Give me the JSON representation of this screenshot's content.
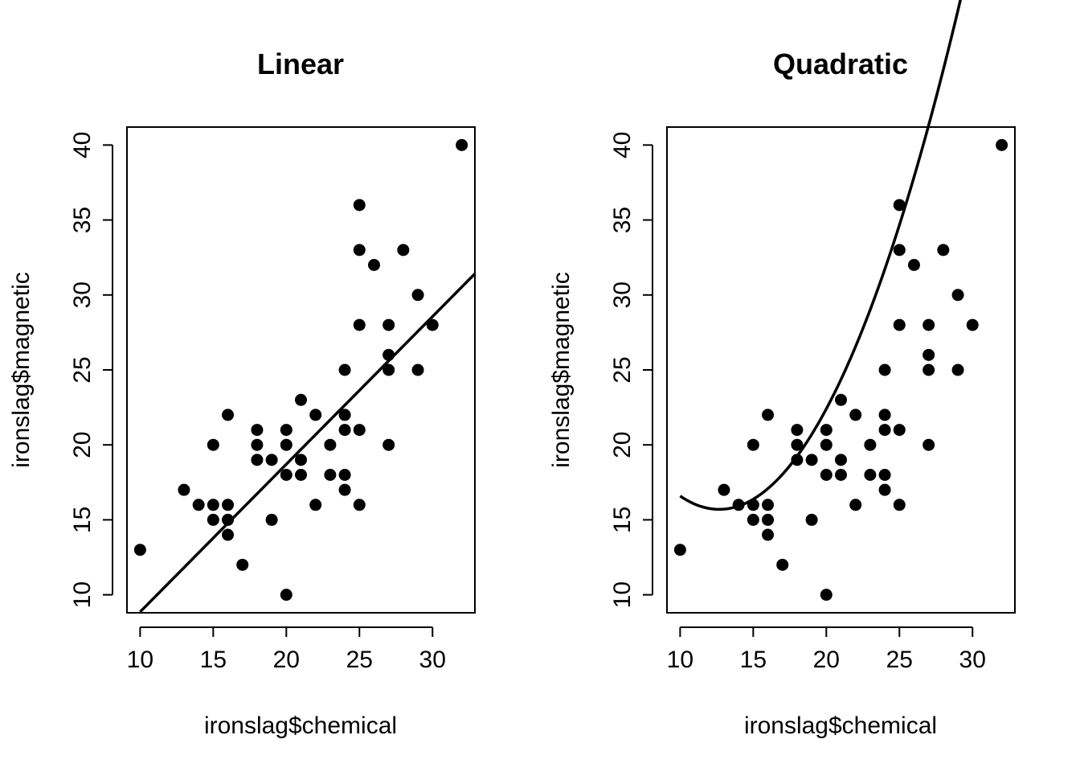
{
  "chart_data": [
    {
      "type": "scatter",
      "title": "Linear",
      "xlabel": "ironslag$chemical",
      "ylabel": "ironslag$magnetic",
      "xlim": [
        9.1,
        32.9
      ],
      "ylim": [
        8.8,
        41.2
      ],
      "xticks": [
        10,
        15,
        20,
        25,
        30
      ],
      "yticks": [
        10,
        15,
        20,
        25,
        30,
        35,
        40
      ],
      "fit": {
        "kind": "linear",
        "coef": [
          -0.99,
          0.985
        ]
      },
      "points": [
        [
          10,
          13
        ],
        [
          13,
          17
        ],
        [
          14,
          16
        ],
        [
          15,
          20
        ],
        [
          15,
          16
        ],
        [
          15,
          15
        ],
        [
          16,
          22
        ],
        [
          16,
          16
        ],
        [
          16,
          15
        ],
        [
          16,
          14
        ],
        [
          17,
          12
        ],
        [
          18,
          21
        ],
        [
          18,
          20
        ],
        [
          18,
          19
        ],
        [
          19,
          19
        ],
        [
          19,
          15
        ],
        [
          20,
          21
        ],
        [
          20,
          20
        ],
        [
          20,
          18
        ],
        [
          20,
          10
        ],
        [
          21,
          23
        ],
        [
          21,
          19
        ],
        [
          21,
          18
        ],
        [
          22,
          22
        ],
        [
          22,
          16
        ],
        [
          23,
          20
        ],
        [
          23,
          18
        ],
        [
          24,
          25
        ],
        [
          24,
          22
        ],
        [
          24,
          21
        ],
        [
          24,
          18
        ],
        [
          24,
          17
        ],
        [
          25,
          36
        ],
        [
          25,
          33
        ],
        [
          25,
          28
        ],
        [
          25,
          21
        ],
        [
          25,
          16
        ],
        [
          26,
          32
        ],
        [
          27,
          28
        ],
        [
          27,
          26
        ],
        [
          27,
          25
        ],
        [
          27,
          20
        ],
        [
          28,
          33
        ],
        [
          29,
          30
        ],
        [
          29,
          25
        ],
        [
          30,
          28
        ],
        [
          32,
          40
        ]
      ]
    },
    {
      "type": "scatter",
      "title": "Quadratic",
      "xlabel": "ironslag$chemical",
      "ylabel": "ironslag$magnetic",
      "xlim": [
        9.1,
        32.9
      ],
      "ylim": [
        8.8,
        41.2
      ],
      "xticks": [
        10,
        15,
        20,
        25,
        30
      ],
      "yticks": [
        10,
        15,
        20,
        25,
        30,
        35,
        40
      ],
      "fit": {
        "kind": "quadratic",
        "coef": [
          35.74,
          -3.163,
          0.1248
        ]
      },
      "points": [
        [
          10,
          13
        ],
        [
          13,
          17
        ],
        [
          14,
          16
        ],
        [
          15,
          20
        ],
        [
          15,
          16
        ],
        [
          15,
          15
        ],
        [
          16,
          22
        ],
        [
          16,
          16
        ],
        [
          16,
          15
        ],
        [
          16,
          14
        ],
        [
          17,
          12
        ],
        [
          18,
          21
        ],
        [
          18,
          20
        ],
        [
          18,
          19
        ],
        [
          19,
          19
        ],
        [
          19,
          15
        ],
        [
          20,
          21
        ],
        [
          20,
          20
        ],
        [
          20,
          18
        ],
        [
          20,
          10
        ],
        [
          21,
          23
        ],
        [
          21,
          19
        ],
        [
          21,
          18
        ],
        [
          22,
          22
        ],
        [
          22,
          16
        ],
        [
          23,
          20
        ],
        [
          23,
          18
        ],
        [
          24,
          25
        ],
        [
          24,
          22
        ],
        [
          24,
          21
        ],
        [
          24,
          18
        ],
        [
          24,
          17
        ],
        [
          25,
          36
        ],
        [
          25,
          33
        ],
        [
          25,
          28
        ],
        [
          25,
          21
        ],
        [
          25,
          16
        ],
        [
          26,
          32
        ],
        [
          27,
          28
        ],
        [
          27,
          26
        ],
        [
          27,
          25
        ],
        [
          27,
          20
        ],
        [
          28,
          33
        ],
        [
          29,
          30
        ],
        [
          29,
          25
        ],
        [
          30,
          28
        ],
        [
          32,
          40
        ]
      ]
    }
  ]
}
